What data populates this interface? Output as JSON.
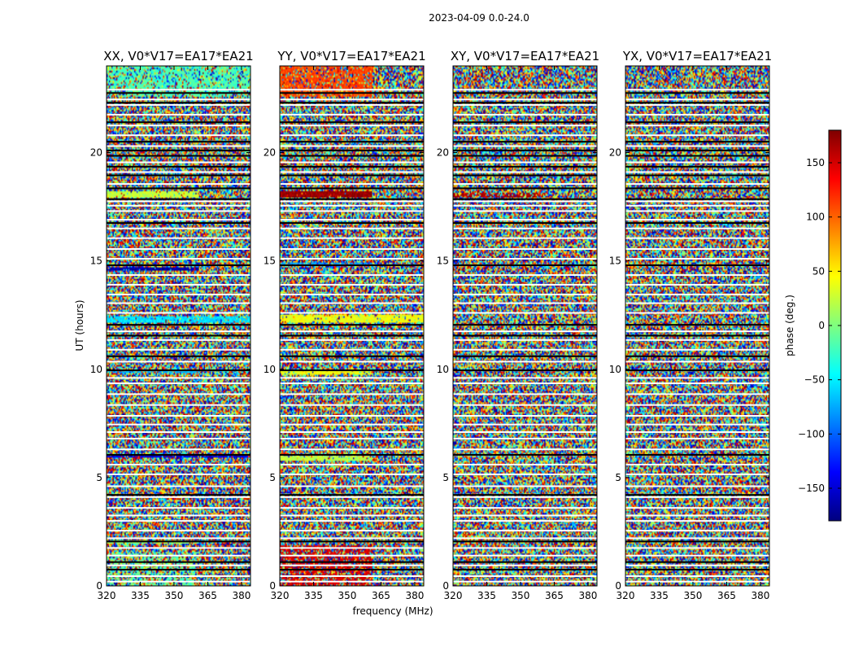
{
  "chart_data": {
    "type": "heatmap",
    "suptitle": "2023-04-09 0.0-24.0",
    "xlabel": "frequency (MHz)",
    "ylabel": "UT (hours)",
    "xlim": [
      320,
      384
    ],
    "ylim": [
      0,
      24
    ],
    "x_ticks": [
      320,
      335,
      350,
      365,
      380
    ],
    "y_ticks": [
      0,
      5,
      10,
      15,
      20
    ],
    "colorbar": {
      "label": "phase (deg.)",
      "range": [
        -180,
        180
      ],
      "ticks": [
        150,
        100,
        50,
        0,
        -50,
        -100,
        -150
      ],
      "tick_labels": [
        "150",
        "100",
        "50",
        "0",
        "−50",
        "−100",
        "−150"
      ],
      "colormap": "jet",
      "colors": [
        "#00007f",
        "#0000ff",
        "#007fff",
        "#00ffff",
        "#7fff7f",
        "#ffff00",
        "#ff7f00",
        "#ff0000",
        "#7f0000"
      ]
    },
    "panels": [
      {
        "title": "XX, V0*V17=EA17*EA21",
        "features": [
          {
            "type": "band",
            "y0": 22.6,
            "y1": 24.0,
            "x0": 320,
            "x1": 384,
            "phase": -20,
            "strength": 0.6
          },
          {
            "type": "band",
            "y0": 17.9,
            "y1": 18.2,
            "x0": 320,
            "x1": 361,
            "phase": 25,
            "strength": 0.9
          },
          {
            "type": "band",
            "y0": 14.55,
            "y1": 14.7,
            "x0": 320,
            "x1": 361,
            "phase": -165,
            "strength": 0.9
          },
          {
            "type": "band",
            "y0": 12.15,
            "y1": 12.45,
            "x0": 320,
            "x1": 384,
            "phase": -55,
            "strength": 0.8
          },
          {
            "type": "band",
            "y0": 9.8,
            "y1": 9.95,
            "x0": 320,
            "x1": 361,
            "phase": -70,
            "strength": 0.7
          },
          {
            "type": "band",
            "y0": 5.9,
            "y1": 6.1,
            "x0": 320,
            "x1": 384,
            "phase": -150,
            "strength": 0.8
          },
          {
            "type": "band",
            "y0": 1.95,
            "y1": 2.1,
            "x0": 320,
            "x1": 361,
            "phase": 10,
            "strength": 0.6
          },
          {
            "type": "band",
            "y0": 0.0,
            "y1": 1.6,
            "x0": 320,
            "x1": 361,
            "phase": -10,
            "strength": 0.4
          }
        ]
      },
      {
        "title": "YY, V0*V17=EA17*EA21",
        "features": [
          {
            "type": "band",
            "y0": 22.6,
            "y1": 24.0,
            "x0": 320,
            "x1": 361,
            "phase": 110,
            "strength": 0.7
          },
          {
            "type": "band",
            "y0": 17.95,
            "y1": 18.2,
            "x0": 320,
            "x1": 361,
            "phase": 170,
            "strength": 0.95
          },
          {
            "type": "band",
            "y0": 14.8,
            "y1": 14.95,
            "x0": 320,
            "x1": 361,
            "phase": -80,
            "strength": 0.7
          },
          {
            "type": "band",
            "y0": 12.15,
            "y1": 12.5,
            "x0": 320,
            "x1": 384,
            "phase": 40,
            "strength": 0.85
          },
          {
            "type": "band",
            "y0": 9.75,
            "y1": 9.95,
            "x0": 320,
            "x1": 361,
            "phase": 40,
            "strength": 0.85
          },
          {
            "type": "band",
            "y0": 5.8,
            "y1": 6.0,
            "x0": 320,
            "x1": 361,
            "phase": 20,
            "strength": 0.85
          },
          {
            "type": "band",
            "y0": 0.0,
            "y1": 1.9,
            "x0": 320,
            "x1": 361,
            "phase": 150,
            "strength": 0.55
          }
        ]
      },
      {
        "title": "XY, V0*V17=EA17*EA21",
        "features": [
          {
            "type": "band",
            "y0": 17.95,
            "y1": 18.15,
            "x0": 320,
            "x1": 361,
            "phase": 165,
            "strength": 0.6
          }
        ]
      },
      {
        "title": "YX, V0*V17=EA17*EA21",
        "features": []
      }
    ],
    "flagged_rows_white": [
      0.2,
      0.45,
      0.95,
      1.4,
      1.75,
      2.2,
      2.55,
      3.0,
      3.25,
      3.6,
      4.1,
      4.6,
      5.15,
      5.6,
      6.3,
      6.8,
      7.1,
      7.45,
      7.85,
      8.35,
      8.85,
      9.35,
      9.6,
      10.35,
      10.9,
      11.35,
      11.75,
      12.6,
      13.05,
      13.45,
      13.9,
      14.35,
      15.1,
      15.55,
      16.05,
      16.5,
      16.9,
      17.3,
      17.55,
      17.75,
      18.55,
      19.1,
      19.55,
      20.3,
      20.8,
      21.25,
      21.75,
      22.2,
      22.45,
      22.9
    ],
    "flagged_rows_black": [
      0.75,
      1.1,
      2.05,
      4.2,
      6.05,
      9.95,
      10.6,
      11.55,
      12.05,
      14.8,
      16.75,
      17.85,
      18.35,
      18.95,
      19.35,
      19.85,
      20.1,
      20.5,
      21.4,
      22.3,
      22.75
    ]
  }
}
